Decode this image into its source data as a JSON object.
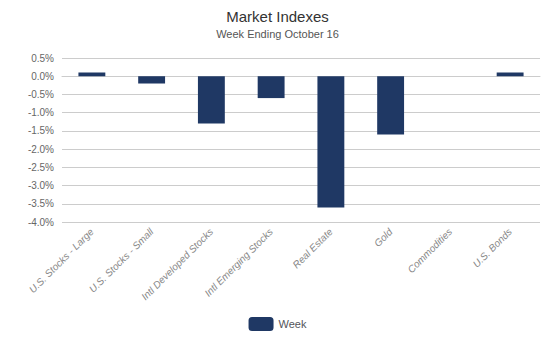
{
  "chart_data": {
    "type": "bar",
    "title": "Market Indexes",
    "subtitle": "Week Ending October 16",
    "categories": [
      "U.S. Stocks - Large",
      "U.S. Stocks - Small",
      "Intl Developed Stocks",
      "Intl Emerging Stocks",
      "Real Estate",
      "Gold",
      "Commodities",
      "U.S. Bonds"
    ],
    "series": [
      {
        "name": "Week",
        "color": "#1F3864",
        "values": [
          0.001,
          -0.002,
          -0.013,
          -0.006,
          -0.036,
          -0.016,
          0.0,
          0.001
        ]
      }
    ],
    "ylim": [
      -0.04,
      0.005
    ],
    "yticks": [
      {
        "value": 0.005,
        "label": "0.5%"
      },
      {
        "value": 0.0,
        "label": "0.0%"
      },
      {
        "value": -0.005,
        "label": "-0.5%"
      },
      {
        "value": -0.01,
        "label": "-1.0%"
      },
      {
        "value": -0.015,
        "label": "-1.5%"
      },
      {
        "value": -0.02,
        "label": "-2.0%"
      },
      {
        "value": -0.025,
        "label": "-2.5%"
      },
      {
        "value": -0.03,
        "label": "-3.0%"
      },
      {
        "value": -0.035,
        "label": "-3.5%"
      },
      {
        "value": -0.04,
        "label": "-4.0%"
      }
    ],
    "grid": true,
    "legend": "bottom"
  }
}
